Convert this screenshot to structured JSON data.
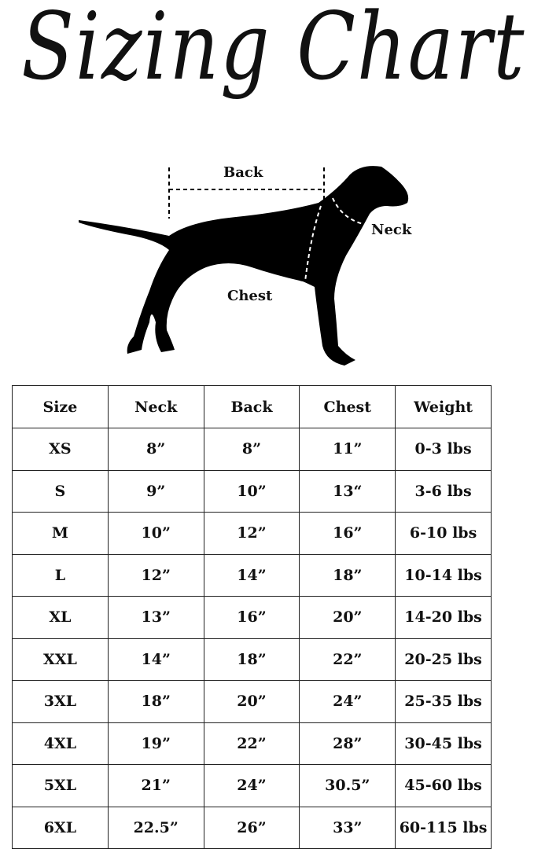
{
  "title": "Sizing Chart",
  "diagram": {
    "labels": {
      "back": "Back",
      "neck": "Neck",
      "chest": "Chest"
    }
  },
  "table": {
    "headers": [
      "Size",
      "Neck",
      "Back",
      "Chest",
      "Weight"
    ],
    "rows": [
      [
        "XS",
        "8”",
        "8”",
        "11”",
        "0-3 lbs"
      ],
      [
        "S",
        "9”",
        "10”",
        "13“",
        "3-6 lbs"
      ],
      [
        "M",
        "10”",
        "12”",
        "16”",
        "6-10 lbs"
      ],
      [
        "L",
        "12”",
        "14”",
        "18”",
        "10-14 lbs"
      ],
      [
        "XL",
        "13”",
        "16”",
        "20”",
        "14-20 lbs"
      ],
      [
        "XXL",
        "14”",
        "18”",
        "22”",
        "20-25 lbs"
      ],
      [
        "3XL",
        "18”",
        "20”",
        "24”",
        "25-35 lbs"
      ],
      [
        "4XL",
        "19”",
        "22”",
        "28”",
        "30-45 lbs"
      ],
      [
        "5XL",
        "21”",
        "24”",
        "30.5”",
        "45-60 lbs"
      ],
      [
        "6XL",
        "22.5”",
        "26”",
        "33”",
        "60-115 lbs"
      ]
    ]
  }
}
